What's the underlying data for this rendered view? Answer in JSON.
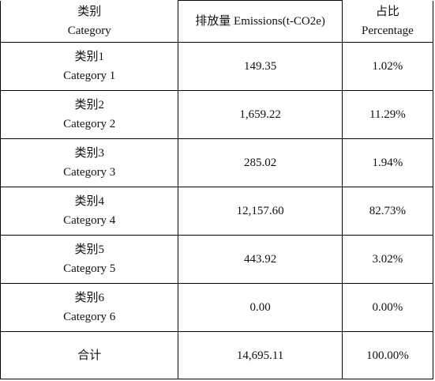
{
  "table": {
    "headers": [
      {
        "zh": "类别",
        "en": "Category"
      },
      {
        "zh": "排放量 Emissions(t-CO2e)",
        "en": ""
      },
      {
        "zh": "占比",
        "en": "Percentage"
      }
    ],
    "rows": [
      {
        "category_zh": "类别1",
        "category_en": "Category 1",
        "emissions": "149.35",
        "percentage": "1.02%"
      },
      {
        "category_zh": "类别2",
        "category_en": "Category 2",
        "emissions": "1,659.22",
        "percentage": "11.29%"
      },
      {
        "category_zh": "类别3",
        "category_en": "Category 3",
        "emissions": "285.02",
        "percentage": "1.94%"
      },
      {
        "category_zh": "类别4",
        "category_en": "Category 4",
        "emissions": "12,157.60",
        "percentage": "82.73%"
      },
      {
        "category_zh": "类别5",
        "category_en": "Category 5",
        "emissions": "443.92",
        "percentage": "3.02%"
      },
      {
        "category_zh": "类别6",
        "category_en": "Category 6",
        "emissions": "0.00",
        "percentage": "0.00%"
      }
    ],
    "total": {
      "label": "合计",
      "emissions": "14,695.11",
      "percentage": "100.00%"
    }
  }
}
